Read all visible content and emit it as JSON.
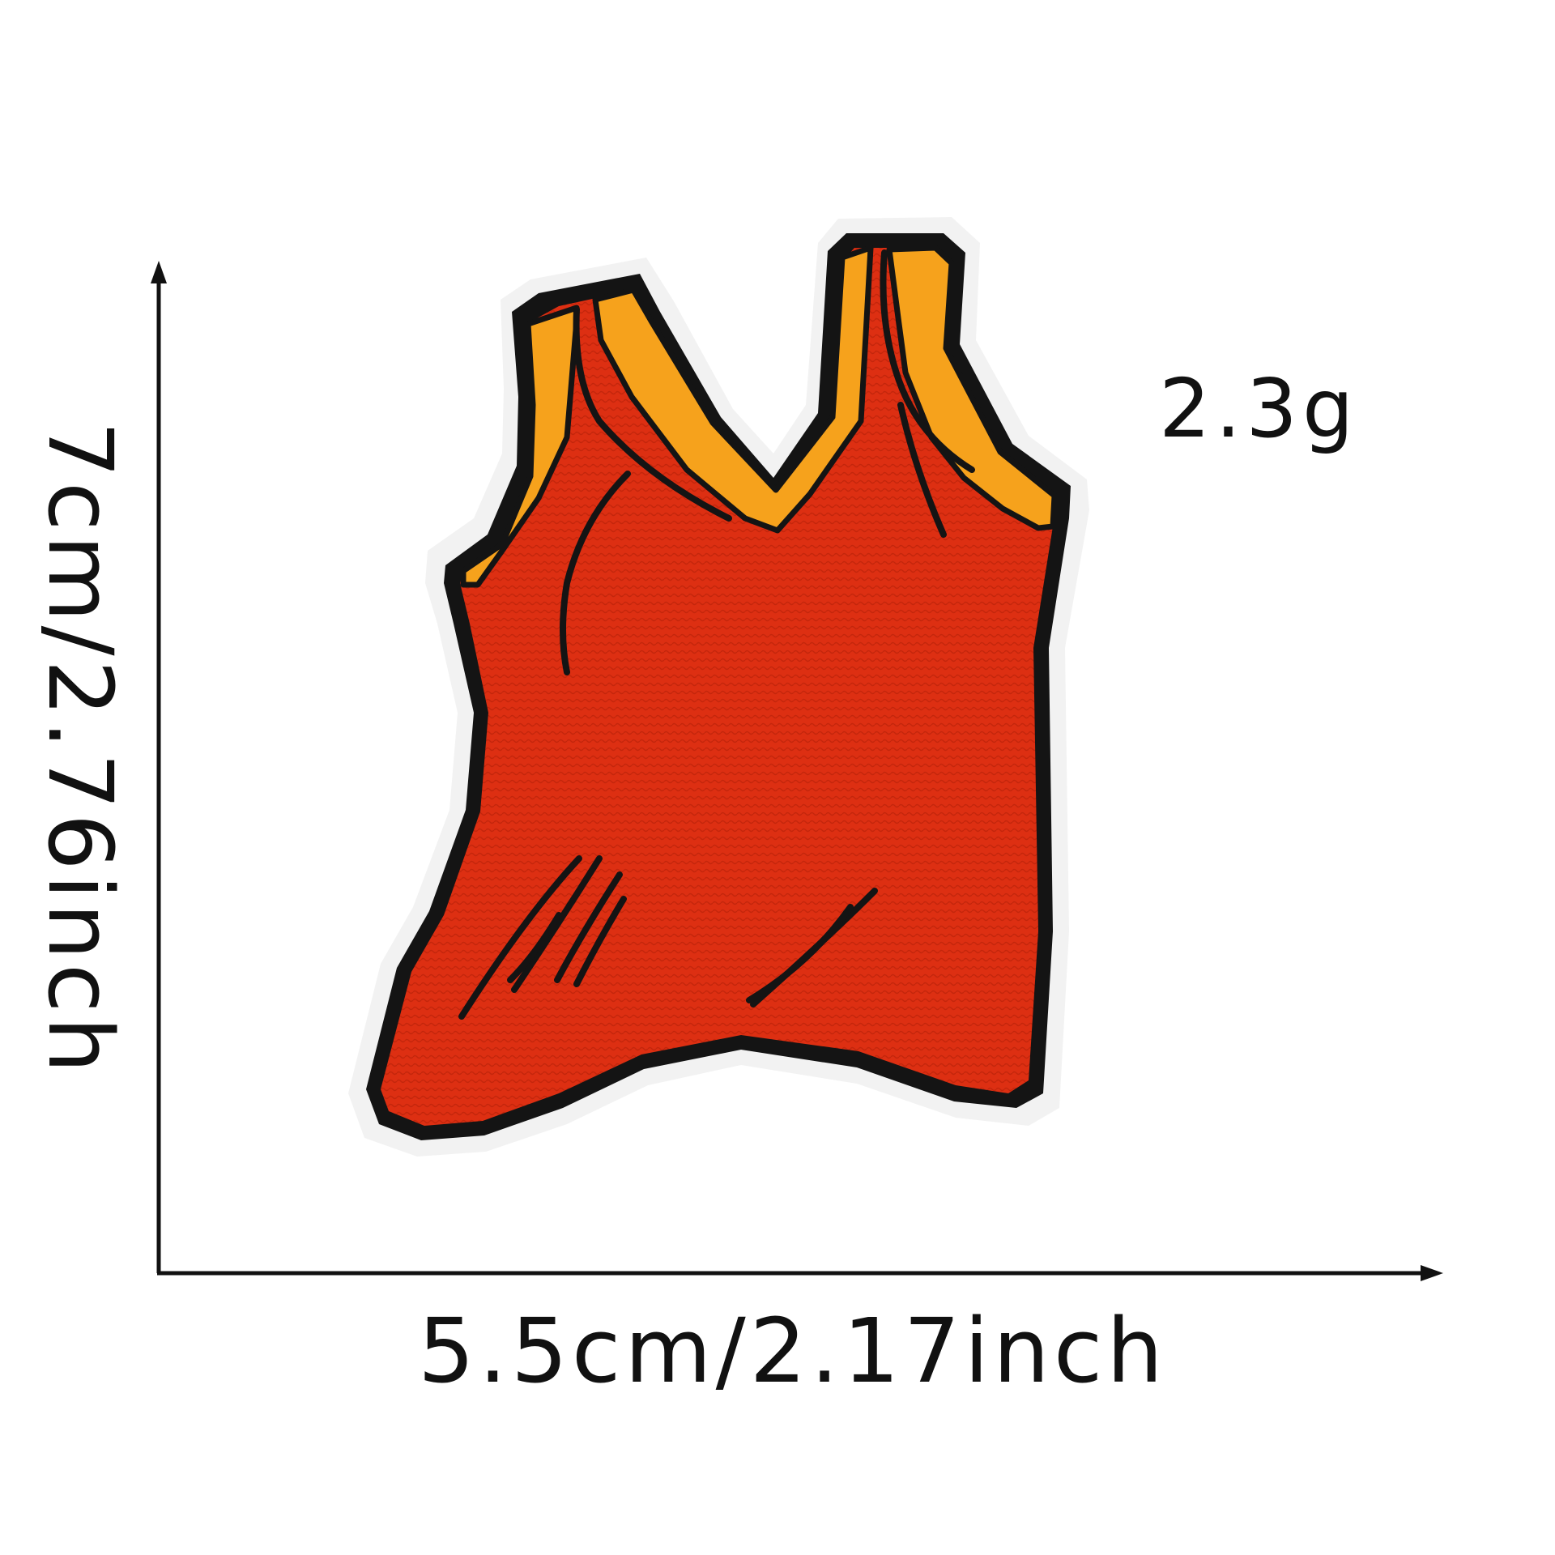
{
  "labels": {
    "weight": "2.3g",
    "width": "5.5cm/2.17inch",
    "height": "7cm/2.76inch"
  },
  "colors": {
    "background": "#ffffff",
    "felt_border": "#f2f2f2",
    "outline": "#141414",
    "jersey_red": "#dd2f12",
    "trim_yellow": "#f6a21c",
    "dimension_lines": "#111111"
  },
  "product": {
    "name_icon": "red-tank-top-patch-icon"
  }
}
